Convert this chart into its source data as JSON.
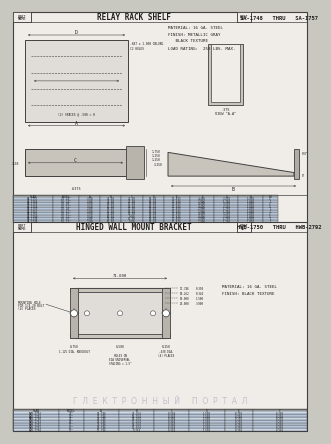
{
  "title1": "RELAY RACK SHELF",
  "part_range1": "SA-1748   THRU   SA-1757",
  "title2": "HINGED WALL MOUNT BRACKET",
  "part_range2": "HWB-1750   THRU   HWB-2792",
  "bg_color": "#c8c8c0",
  "panel_bg": "#f0ede8",
  "line_color": "#404040",
  "text_color": "#202020",
  "dim_color": "#404040",
  "watermark_text": "Г  Л  Е  К  Т  Р  О  Н  Н  Ы  Й     П  О  Р  Т  А  Л",
  "watermark_color": "#9999bb",
  "table1_headers": [
    "PLAN",
    "MODEL",
    "A",
    "B",
    "C",
    "D",
    "E",
    "F",
    "G",
    "H",
    "RU"
  ],
  "table1_rows": [
    [
      "SA-1748",
      "1U 12\"",
      "2.00",
      "10.00",
      "9.00",
      "18.44",
      "17.625",
      "2.906",
      "1.750",
      "1.000",
      "1"
    ],
    [
      "SA-1749",
      "1U 15\"",
      "2.00",
      "13.00",
      "12.00",
      "18.44",
      "17.625",
      "2.906",
      "1.750",
      "1.000",
      "1"
    ],
    [
      "SA-1750",
      "2U 12\"",
      "3.50",
      "10.00",
      "9.00",
      "18.44",
      "17.625",
      "4.406",
      "3.250",
      "1.000",
      "2"
    ],
    [
      "SA-1751",
      "2U 15\"",
      "3.50",
      "13.00",
      "12.00",
      "18.44",
      "17.625",
      "4.406",
      "3.250",
      "1.000",
      "2"
    ],
    [
      "SA-1752",
      "1U 17\"",
      "2.00",
      "15.00",
      "14.00",
      "18.44",
      "17.625",
      "2.906",
      "1.750",
      "1.000",
      "1"
    ],
    [
      "SA-1753",
      "1U 20\"",
      "2.00",
      "18.00",
      "17.00",
      "18.44",
      "17.625",
      "2.906",
      "1.750",
      "1.000",
      "1"
    ],
    [
      "SA-1754",
      "2U 17\"",
      "3.50",
      "15.00",
      "14.00",
      "18.44",
      "17.625",
      "4.406",
      "3.250",
      "1.000",
      "2"
    ],
    [
      "SA-1755",
      "2U 20\"",
      "3.50",
      "18.00",
      "17.00",
      "18.44",
      "17.625",
      "4.406",
      "3.250",
      "1.000",
      "2"
    ],
    [
      "SA-1756",
      "1U 24\"",
      "2.00",
      "22.00",
      "21.00",
      "18.44",
      "17.625",
      "2.906",
      "1.750",
      "1.000",
      "1"
    ],
    [
      "SA-1757",
      "2U 24\"",
      "3.50",
      "22.00",
      "21.00",
      "18.44",
      "17.625",
      "4.406",
      "3.250",
      "1.000",
      "2"
    ]
  ],
  "table2_headers": [
    "PLAN",
    "MODEL",
    "A",
    "B",
    "C",
    "D",
    "E",
    "F"
  ],
  "table2_rows": [
    [
      "HWB-1750",
      "12\"",
      "17.746",
      "9.254",
      "0.344",
      "1.500",
      "0.750",
      "0.250"
    ],
    [
      "HWB-1751",
      "15\"",
      "20.746",
      "12.254",
      "0.344",
      "1.500",
      "0.750",
      "0.250"
    ],
    [
      "HWB-1752",
      "17\"",
      "22.746",
      "14.254",
      "0.344",
      "1.500",
      "0.750",
      "0.250"
    ],
    [
      "HWB-1753",
      "20\"",
      "25.746",
      "17.254",
      "0.344",
      "1.500",
      "0.750",
      "0.250"
    ],
    [
      "HWB-2790",
      "21\"",
      "26.746",
      "18.254",
      "0.344",
      "1.500",
      "0.750",
      "0.250"
    ],
    [
      "HWB-2791",
      "22\"",
      "27.746",
      "19.254",
      "0.344",
      "1.500",
      "0.750",
      "0.250"
    ],
    [
      "HWB-2792",
      "24\"",
      "29.746",
      "21.254",
      "0.344",
      "1.500",
      "0.750",
      "0.250"
    ]
  ],
  "material1": "MATERIAL: 16 GA. STEEL",
  "finish1": "FINISH: METALLIC GRAY",
  "texture1": "   BLACK TEXTURE",
  "load1": "LOAD RATING:  250 LBS. MAX.",
  "material2": "MATERIAL: 16 GA. STEEL",
  "finish2": "FINISH: BLACK TEXTURE"
}
